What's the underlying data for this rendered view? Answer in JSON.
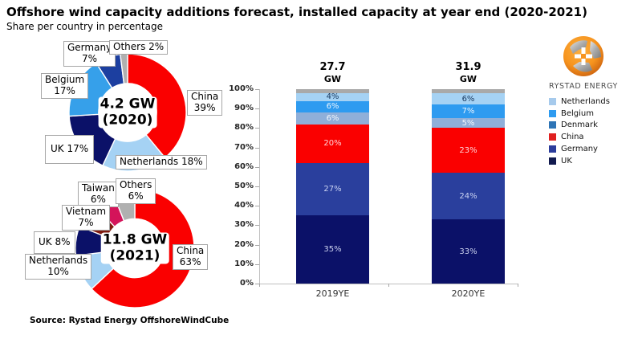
{
  "header": {
    "title": "Offshore wind capacity additions forecast, installed capacity at year end (2020-2021)",
    "subtitle": "Share per country in percentage"
  },
  "source": "Source: Rystad Energy OffshoreWindCube",
  "logo": {
    "name": "RYSTAD ENERGY"
  },
  "chart_data": [
    {
      "type": "pie",
      "variant": "donut",
      "center": "4.2 GW\n(2020)",
      "total_gw": 4.2,
      "year": "2020",
      "slices": [
        {
          "label": "China",
          "value": 39,
          "color": "#FA0000",
          "display": "China\n39%"
        },
        {
          "label": "Netherlands",
          "value": 18,
          "color": "#A5D2F4",
          "display": "Netherlands 18%"
        },
        {
          "label": "UK",
          "value": 17,
          "color": "#0B1168",
          "display": "UK 17%"
        },
        {
          "label": "Belgium",
          "value": 17,
          "color": "#36A0EA",
          "display": "Belgium\n17%"
        },
        {
          "label": "Germany",
          "value": 7,
          "color": "#1C3FA0",
          "display": "Germany\n7%"
        },
        {
          "label": "Others",
          "value": 2,
          "color": "#B0B0B0",
          "display": "Others 2%"
        }
      ]
    },
    {
      "type": "pie",
      "variant": "donut",
      "center": "11.8 GW\n(2021)",
      "total_gw": 11.8,
      "year": "2021",
      "slices": [
        {
          "label": "China",
          "value": 63,
          "color": "#FA0000",
          "display": "China\n63%"
        },
        {
          "label": "Netherlands",
          "value": 10,
          "color": "#A5D2F4",
          "display": "Netherlands\n10%"
        },
        {
          "label": "UK",
          "value": 8,
          "color": "#0B1168",
          "display": "UK 8%"
        },
        {
          "label": "Vietnam",
          "value": 7,
          "color": "#7E1B10",
          "display": "Vietnam\n7%"
        },
        {
          "label": "Taiwan",
          "value": 6,
          "color": "#D4145A",
          "display": "Taiwan\n6%"
        },
        {
          "label": "Others",
          "value": 6,
          "color": "#B0B0B0",
          "display": "Others\n6%"
        }
      ]
    },
    {
      "type": "bar",
      "stacked": true,
      "categories": [
        "2019YE",
        "2020YE"
      ],
      "totals": [
        "27.7",
        "31.9"
      ],
      "total_unit": "GW",
      "ylim": [
        0,
        100
      ],
      "y_ticks": [
        "0%",
        "10%",
        "20%",
        "30%",
        "40%",
        "50%",
        "60%",
        "70%",
        "80%",
        "90%",
        "100%"
      ],
      "grid": false,
      "legend_position": "right",
      "series": [
        {
          "name": "UK",
          "color": "#0B1168",
          "label_color": "#CBD1EE",
          "values": [
            35,
            33
          ],
          "show_label": true
        },
        {
          "name": "Germany",
          "color": "#2A3F9D",
          "label_color": "#CBD3F2",
          "values": [
            27,
            24
          ],
          "show_label": true
        },
        {
          "name": "China",
          "color": "#FA0000",
          "label_color": "#FFD4D8",
          "values": [
            20,
            23
          ],
          "show_label": true
        },
        {
          "name": "Denmark",
          "color": "#8FAFD9",
          "label_color": "#F2F6FB",
          "values": [
            6,
            5
          ],
          "show_label": true
        },
        {
          "name": "Belgium",
          "color": "#2E9BF0",
          "label_color": "#EAF4FE",
          "values": [
            6,
            7
          ],
          "show_label": true
        },
        {
          "name": "Netherlands",
          "color": "#A5D2F4",
          "label_color": "#17365D",
          "values": [
            4,
            6
          ],
          "show_label": true
        },
        {
          "name": "Others",
          "color": "#A9A9A9",
          "label_color": "#FFFFFF",
          "values": [
            2,
            2
          ],
          "show_label": false
        }
      ],
      "legend": [
        {
          "label": "Netherlands",
          "color": "#A6CAEC"
        },
        {
          "label": "Belgium",
          "color": "#2E9BF0"
        },
        {
          "label": "Denmark",
          "color": "#2E75B6"
        },
        {
          "label": "China",
          "color": "#E02020"
        },
        {
          "label": "Germany",
          "color": "#2B3C9B"
        },
        {
          "label": "UK",
          "color": "#111A4F"
        }
      ]
    }
  ]
}
